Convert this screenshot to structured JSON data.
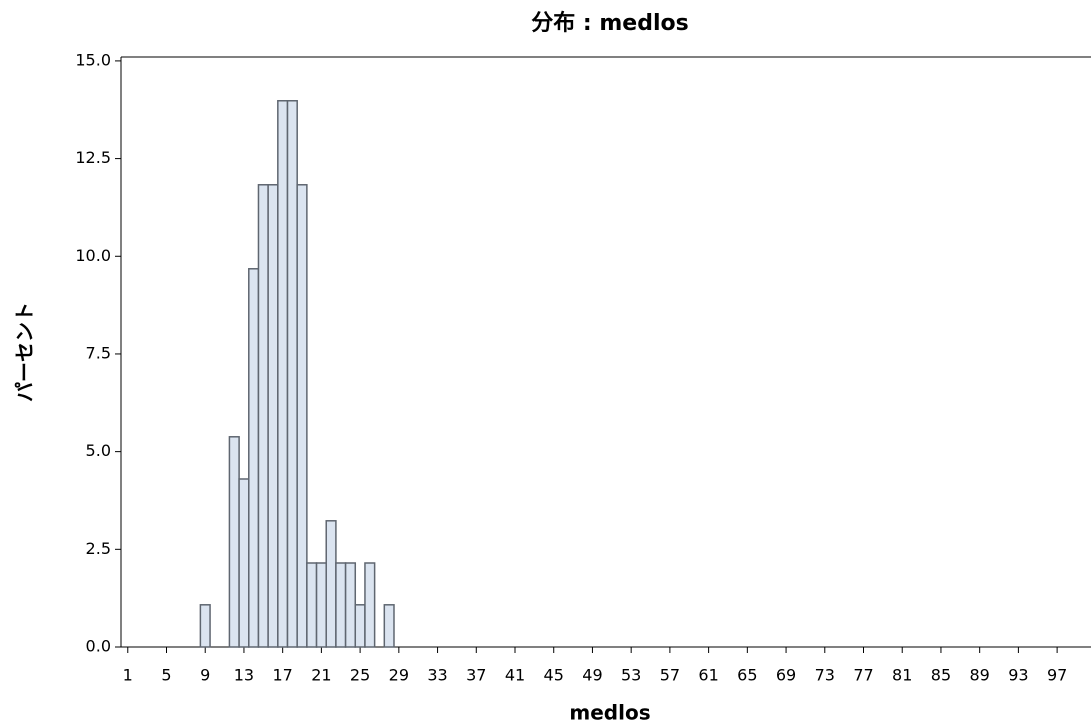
{
  "chart_data": {
    "type": "histogram",
    "title": "分布 : medlos",
    "xlabel": "medlos",
    "ylabel": "パーセント",
    "bins": [
      8.5,
      9.5,
      10.5,
      11.5,
      12.5,
      13.5,
      14.5,
      15.5,
      16.5,
      17.5,
      18.5,
      19.5,
      20.5,
      21.5,
      22.5,
      23.5,
      24.5,
      25.5,
      26.5,
      27.5,
      28.5
    ],
    "values": [
      1.08,
      0,
      0,
      5.38,
      4.3,
      9.68,
      11.83,
      11.83,
      13.98,
      13.98,
      11.83,
      2.15,
      2.15,
      3.23,
      2.15,
      2.15,
      1.08,
      2.15,
      0,
      1.08
    ],
    "color": "#dbe4f0",
    "edgecolor": "#5f6670",
    "xlim": [
      0.3,
      100.5
    ],
    "xticks": [
      1,
      5,
      9,
      13,
      17,
      21,
      25,
      29,
      33,
      37,
      41,
      45,
      49,
      53,
      57,
      61,
      65,
      69,
      73,
      77,
      81,
      85,
      89,
      93,
      97
    ],
    "ylim": [
      0,
      15.1
    ],
    "yticks": [
      {
        "value": 0,
        "label": "0.0"
      },
      2.5,
      {
        "value": 5,
        "label": "5.0"
      },
      7.5,
      {
        "value": 10,
        "label": "10.0"
      },
      12.5,
      {
        "value": 15,
        "label": "15.0"
      }
    ],
    "grid": false
  }
}
